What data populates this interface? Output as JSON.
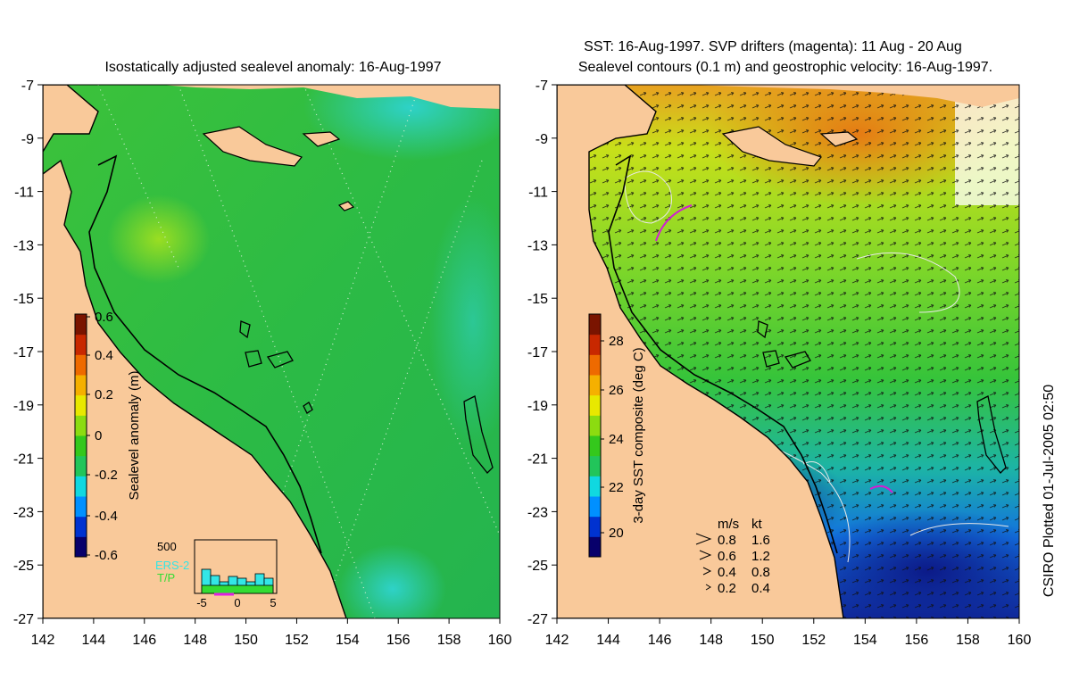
{
  "left_panel": {
    "title": "Isostatically adjusted sealevel anomaly: 16-Aug-1997",
    "colorbar": {
      "label": "Sealevel anomaly (m)",
      "ticks": [
        "0.6",
        "0.4",
        "0.2",
        "0",
        "-0.2",
        "-0.4",
        "-0.6"
      ],
      "colors": [
        "#08006b",
        "#0032d0",
        "#0090ff",
        "#10d8e0",
        "#22c55a",
        "#34c81c",
        "#8cdc10",
        "#e8e800",
        "#f5b000",
        "#ee6a00",
        "#c82800",
        "#7a1400"
      ]
    },
    "inset": {
      "ymax_label": "500",
      "series": [
        "ERS-2",
        "T/P"
      ],
      "series_colors": [
        "#33e6e6",
        "#33dd33"
      ],
      "x_ticks": [
        "-5",
        "0",
        "5"
      ]
    }
  },
  "right_panel": {
    "title_line1": "SST: 16-Aug-1997. SVP drifters (magenta): 11 Aug - 20 Aug",
    "title_line2": "Sealevel contours (0.1 m) and geostrophic velocity: 16-Aug-1997.",
    "colorbar": {
      "label": "3-day SST composite (deg C)",
      "ticks": [
        "28",
        "26",
        "24",
        "22",
        "20"
      ],
      "colors": [
        "#08006b",
        "#0032d0",
        "#0090ff",
        "#10d8e0",
        "#22c55a",
        "#34c81c",
        "#8cdc10",
        "#e8e800",
        "#f5b000",
        "#ee6a00",
        "#c82800",
        "#7a1400"
      ]
    },
    "velocity_key": {
      "header_ms": "m/s",
      "header_kt": "kt",
      "rows": [
        {
          "ms": "0.8",
          "kt": "1.6"
        },
        {
          "ms": "0.6",
          "kt": "1.2"
        },
        {
          "ms": "0.4",
          "kt": "0.8"
        },
        {
          "ms": "0.2",
          "kt": "0.4"
        }
      ]
    }
  },
  "axes": {
    "lon_labels": [
      "142",
      "144",
      "146",
      "148",
      "150",
      "152",
      "154",
      "156",
      "158",
      "160"
    ],
    "lat_labels": [
      "-7",
      "-9",
      "-11",
      "-13",
      "-15",
      "-17",
      "-19",
      "-21",
      "-23",
      "-25",
      "-27"
    ]
  },
  "credit": "CSIRO Plotted 01-Jul-2005 02:50",
  "colors": {
    "land": "#f9c99a",
    "sea_green": "#2fbe3b",
    "coast": "#000000"
  }
}
